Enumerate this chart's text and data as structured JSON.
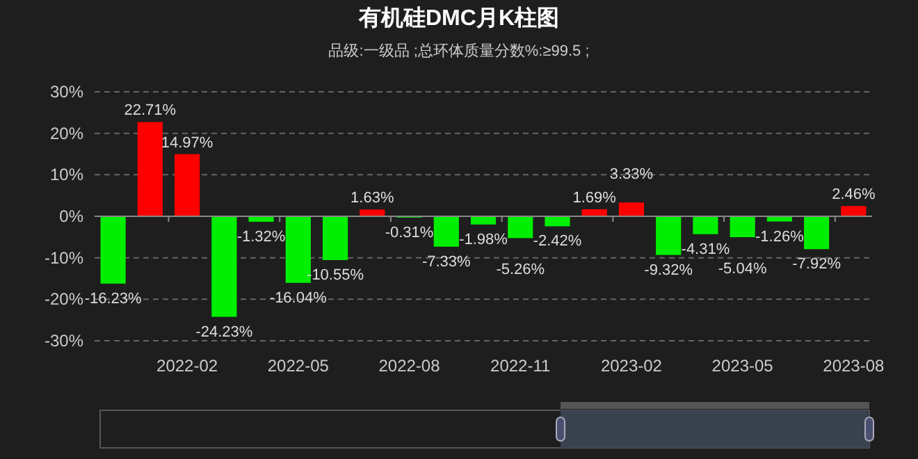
{
  "chart_data": {
    "type": "bar",
    "title": "有机硅DMC月K柱图",
    "subtitle": "品级:一级品 ;总环体质量分数%:≥99.5 ;",
    "categories": [
      null,
      null,
      "2022-02",
      null,
      null,
      "2022-05",
      null,
      null,
      "2022-08",
      null,
      null,
      "2022-11",
      null,
      null,
      "2023-02",
      null,
      null,
      "2023-05",
      null,
      null,
      "2023-08"
    ],
    "values": [
      -16.23,
      22.71,
      14.97,
      -24.23,
      -1.32,
      -16.04,
      -10.55,
      1.63,
      -0.31,
      -7.33,
      -1.98,
      -5.26,
      -2.42,
      1.69,
      3.33,
      -9.32,
      -4.31,
      -5.04,
      -1.26,
      -7.92,
      2.46
    ],
    "colors": [
      "#00ee00",
      "#ff0000",
      "#ff0000",
      "#00ee00",
      "#00ee00",
      "#00ee00",
      "#00ee00",
      "#ff0000",
      "#00ee00",
      "#00ee00",
      "#00ee00",
      "#00ee00",
      "#00ee00",
      "#ff0000",
      "#ff0000",
      "#00ee00",
      "#00ee00",
      "#00ee00",
      "#00ee00",
      "#00ee00",
      "#ff0000"
    ],
    "value_labels": [
      "-16.23%",
      "22.71%",
      "14.97%",
      "-24.23%",
      "-1.32%",
      "-16.04%",
      "-10.55%",
      "1.63%",
      "-0.31%",
      "-7.33%",
      "-1.98%",
      "-5.26%",
      "-2.42%",
      "1.69%",
      "3.33%",
      "-9.32%",
      "-4.31%",
      "-5.04%",
      "-1.26%",
      "-7.92%",
      "2.46%"
    ],
    "ylim": [
      -30,
      30
    ],
    "yticks": [
      {
        "value": -30,
        "label": "-30%"
      },
      {
        "value": -20,
        "label": "-20%"
      },
      {
        "value": -10,
        "label": "-10%"
      },
      {
        "value": 0,
        "label": "0%"
      },
      {
        "value": 10,
        "label": "10%"
      },
      {
        "value": 20,
        "label": "20%"
      },
      {
        "value": 30,
        "label": "30%"
      }
    ],
    "grid": "y"
  }
}
